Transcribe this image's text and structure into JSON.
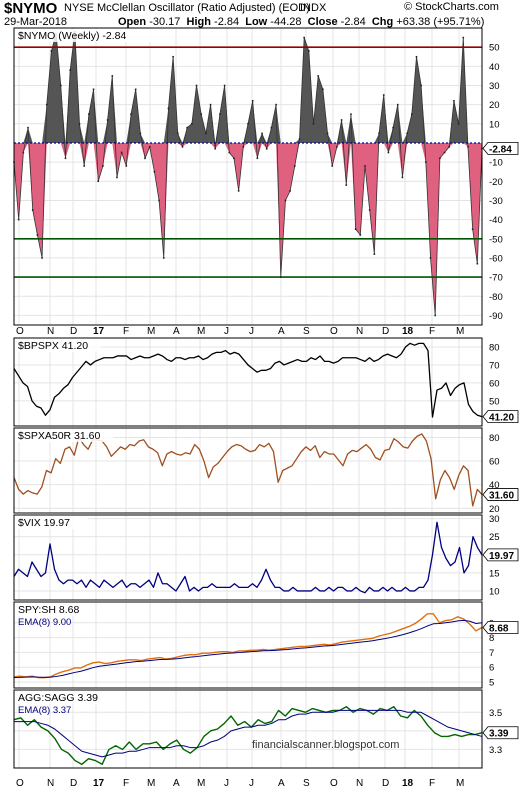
{
  "header": {
    "symbol": "$NYMO",
    "description": "NYSE McClellan Oscillator (Ratio Adjusted) (EOD)",
    "exchange": "INDX",
    "brand": "© StockCharts.com",
    "date": "29-Mar-2018",
    "open_label": "Open",
    "open": "-30.17",
    "high_label": "High",
    "high": "-2.84",
    "low_label": "Low",
    "low": "-44.28",
    "close_label": "Close",
    "close": "-2.84",
    "chg_label": "Chg",
    "chg": "+63.38 (+95.71%)"
  },
  "watermark": "financialscanner.blogspot.com",
  "x_labels": [
    "O",
    "N",
    "D",
    "17",
    "F",
    "M",
    "A",
    "M",
    "J",
    "J",
    "A",
    "S",
    "O",
    "N",
    "D",
    "18",
    "F",
    "M"
  ],
  "colors": {
    "red_line": "#990000",
    "green_line": "#005500",
    "zero_line": "#000099",
    "pos_fill": "#555555",
    "neg_fill": "#e06080",
    "bpspx": "#000000",
    "spxa50r": "#a05020",
    "vix": "#000080",
    "spysh": "#e07010",
    "ema": "#000080",
    "aggsagg": "#006600"
  },
  "chart_data": [
    {
      "type": "area",
      "name": "nymo",
      "label": "$NYMO (Weekly) -2.84",
      "last": "-2.84",
      "ylim": [
        -95,
        60
      ],
      "yticks": [
        50,
        40,
        30,
        20,
        10,
        -10,
        -20,
        -30,
        -40,
        -50,
        -60,
        -70,
        -80,
        -90
      ],
      "hlines": [
        50,
        -50,
        -70
      ],
      "values": [
        -10,
        -40,
        -5,
        8,
        -35,
        -48,
        -60,
        20,
        48,
        57,
        30,
        -8,
        38,
        58,
        10,
        -12,
        15,
        28,
        -20,
        -12,
        12,
        35,
        -18,
        -5,
        -12,
        15,
        28,
        5,
        -8,
        -2,
        -15,
        -30,
        -60,
        18,
        45,
        5,
        -2,
        8,
        10,
        30,
        15,
        5,
        20,
        -3,
        15,
        30,
        -5,
        -8,
        -25,
        -2,
        10,
        22,
        -8,
        5,
        -3,
        8,
        20,
        -70,
        -30,
        -25,
        -12,
        2,
        55,
        48,
        10,
        35,
        28,
        5,
        -12,
        -2,
        12,
        -22,
        15,
        -45,
        -48,
        -12,
        -35,
        -58,
        5,
        25,
        -5,
        8,
        20,
        -18,
        5,
        15,
        45,
        30,
        -10,
        -60,
        -90,
        -8,
        -5,
        -2,
        22,
        10,
        55,
        -2,
        -45,
        -63,
        -2.84
      ]
    },
    {
      "type": "line",
      "name": "bpspx",
      "label": "$BPSPX 41.20",
      "last": "41.20",
      "ylim": [
        36,
        85
      ],
      "yticks": [
        80,
        70,
        60,
        50
      ],
      "values": [
        68,
        64,
        60,
        58,
        50,
        47,
        46,
        42,
        45,
        52,
        54,
        57,
        59,
        63,
        66,
        69,
        72,
        70,
        72,
        73,
        74,
        74,
        74,
        75,
        75,
        75,
        73,
        74,
        75,
        74,
        74,
        75,
        76,
        75,
        73,
        72,
        74,
        74,
        73,
        74,
        74,
        75,
        73,
        74,
        76,
        77,
        77,
        78,
        76,
        77,
        76,
        73,
        70,
        68,
        66,
        67,
        67,
        68,
        71,
        72,
        70,
        71,
        72,
        73,
        72,
        72,
        74,
        73,
        75,
        72,
        72,
        71,
        72,
        74,
        74,
        74,
        74,
        73,
        72,
        74,
        72,
        73,
        75,
        76,
        75,
        74,
        76,
        80,
        82,
        81,
        82,
        82,
        78,
        41,
        56,
        57,
        60,
        53,
        57,
        59,
        60,
        48,
        44,
        42,
        41.2
      ]
    },
    {
      "type": "line",
      "name": "spxa50r",
      "label": "$SPXA50R 31.60",
      "last": "31.60",
      "ylim": [
        16,
        88
      ],
      "yticks": [
        80,
        60,
        40,
        20
      ],
      "values": [
        46,
        36,
        32,
        35,
        33,
        32,
        38,
        52,
        50,
        62,
        58,
        70,
        72,
        65,
        80,
        74,
        70,
        78,
        78,
        77,
        72,
        64,
        68,
        72,
        70,
        74,
        73,
        77,
        78,
        72,
        70,
        67,
        56,
        66,
        68,
        66,
        65,
        67,
        66,
        74,
        70,
        60,
        46,
        55,
        58,
        63,
        68,
        72,
        74,
        73,
        70,
        68,
        69,
        74,
        72,
        75,
        68,
        42,
        52,
        54,
        56,
        62,
        68,
        72,
        69,
        73,
        63,
        68,
        66,
        66,
        61,
        56,
        66,
        69,
        68,
        71,
        74,
        70,
        63,
        61,
        69,
        70,
        79,
        76,
        72,
        71,
        77,
        81,
        83,
        77,
        62,
        28,
        44,
        52,
        46,
        36,
        48,
        56,
        52,
        22,
        36,
        31.6
      ]
    },
    {
      "type": "line",
      "name": "vix",
      "label": "$VIX 19.97",
      "last": "19.97",
      "ylim": [
        7.5,
        31
      ],
      "yticks": [
        30,
        25,
        20,
        15,
        10
      ],
      "values": [
        14,
        16,
        15,
        14,
        18,
        16,
        14,
        15,
        23,
        16,
        13,
        12,
        13,
        13,
        12,
        13,
        11,
        13,
        12,
        11,
        13,
        12,
        11,
        12,
        13,
        11,
        12,
        12,
        11,
        12,
        13,
        11,
        15,
        12,
        12,
        11,
        10,
        12,
        14,
        10,
        11,
        10,
        11,
        11,
        12,
        11,
        11,
        11,
        11,
        12,
        11,
        11,
        11,
        12,
        11,
        13,
        16,
        13,
        11,
        11,
        10,
        10,
        11,
        10,
        10,
        10,
        10,
        11,
        10,
        10,
        11,
        10,
        11,
        11,
        10,
        10,
        11,
        10,
        9.5,
        11,
        10,
        10,
        11,
        10,
        11,
        10,
        10,
        11,
        10,
        10,
        11,
        11,
        13,
        20,
        29,
        22,
        19,
        17,
        18,
        22,
        15,
        17,
        25,
        22,
        19.97
      ]
    },
    {
      "type": "line",
      "name": "spysh",
      "label": "SPY:SH 8.68",
      "ema_label": "EMA(8) 9.00",
      "last": "8.68",
      "ylim": [
        4.6,
        10.4
      ],
      "yticks": [
        9,
        8,
        7,
        6,
        5
      ],
      "series": [
        {
          "name": "SPY:SH",
          "values": [
            5.35,
            5.4,
            5.35,
            5.4,
            5.3,
            5.3,
            5.35,
            5.55,
            5.7,
            5.8,
            5.95,
            5.95,
            6.15,
            6.3,
            6.35,
            6.25,
            6.3,
            6.4,
            6.45,
            6.5,
            6.5,
            6.45,
            6.55,
            6.6,
            6.65,
            6.55,
            6.6,
            6.7,
            6.8,
            6.85,
            6.85,
            6.95,
            6.95,
            7.0,
            7.05,
            7.05,
            7.0,
            7.1,
            7.1,
            7.15,
            7.15,
            7.2,
            7.15,
            7.2,
            7.25,
            7.3,
            7.35,
            7.4,
            7.4,
            7.45,
            7.5,
            7.55,
            7.5,
            7.6,
            7.7,
            7.75,
            7.8,
            7.85,
            7.9,
            7.95,
            8.1,
            8.2,
            8.3,
            8.45,
            8.6,
            8.75,
            8.95,
            9.25,
            9.6,
            9.6,
            9.0,
            9.15,
            9.2,
            9.4,
            9.25,
            8.9,
            8.45,
            8.68
          ]
        },
        {
          "name": "EMA(8)",
          "values": [
            5.3,
            5.32,
            5.33,
            5.35,
            5.33,
            5.32,
            5.33,
            5.38,
            5.45,
            5.55,
            5.65,
            5.73,
            5.85,
            5.97,
            6.07,
            6.12,
            6.17,
            6.22,
            6.28,
            6.33,
            6.38,
            6.4,
            6.44,
            6.48,
            6.52,
            6.53,
            6.55,
            6.58,
            6.63,
            6.68,
            6.72,
            6.77,
            6.82,
            6.86,
            6.9,
            6.94,
            6.96,
            6.99,
            7.02,
            7.05,
            7.08,
            7.11,
            7.12,
            7.14,
            7.17,
            7.2,
            7.24,
            7.28,
            7.31,
            7.35,
            7.39,
            7.43,
            7.45,
            7.49,
            7.54,
            7.59,
            7.64,
            7.69,
            7.74,
            7.79,
            7.86,
            7.93,
            8.01,
            8.1,
            8.2,
            8.32,
            8.45,
            8.6,
            8.78,
            8.93,
            8.95,
            9.0,
            9.05,
            9.13,
            9.16,
            9.1,
            8.95,
            9.0
          ]
        }
      ]
    },
    {
      "type": "line",
      "name": "aggsagg",
      "label": "AGG:SAGG 3.39",
      "ema_label": "EMA(8) 3.37",
      "last": "3.39",
      "ylim": [
        3.2,
        3.62
      ],
      "yticks": [
        3.5,
        3.4,
        3.3
      ],
      "series": [
        {
          "name": "AGG:SAGG",
          "values": [
            3.46,
            3.47,
            3.43,
            3.46,
            3.42,
            3.4,
            3.36,
            3.3,
            3.28,
            3.24,
            3.22,
            3.25,
            3.24,
            3.22,
            3.3,
            3.32,
            3.3,
            3.34,
            3.3,
            3.33,
            3.33,
            3.34,
            3.3,
            3.33,
            3.35,
            3.3,
            3.28,
            3.31,
            3.37,
            3.4,
            3.41,
            3.44,
            3.48,
            3.43,
            3.45,
            3.42,
            3.46,
            3.44,
            3.45,
            3.51,
            3.48,
            3.52,
            3.51,
            3.5,
            3.52,
            3.51,
            3.5,
            3.51,
            3.51,
            3.53,
            3.5,
            3.52,
            3.51,
            3.49,
            3.52,
            3.51,
            3.53,
            3.48,
            3.47,
            3.51,
            3.48,
            3.43,
            3.39,
            3.37,
            3.37,
            3.38,
            3.37,
            3.38,
            3.38,
            3.39
          ]
        },
        {
          "name": "EMA(8)",
          "values": [
            3.45,
            3.45,
            3.45,
            3.45,
            3.44,
            3.43,
            3.41,
            3.38,
            3.35,
            3.32,
            3.29,
            3.28,
            3.27,
            3.26,
            3.27,
            3.28,
            3.28,
            3.29,
            3.29,
            3.3,
            3.31,
            3.31,
            3.31,
            3.31,
            3.32,
            3.32,
            3.31,
            3.31,
            3.32,
            3.34,
            3.35,
            3.37,
            3.4,
            3.41,
            3.42,
            3.42,
            3.43,
            3.43,
            3.44,
            3.46,
            3.46,
            3.48,
            3.49,
            3.49,
            3.5,
            3.5,
            3.5,
            3.5,
            3.51,
            3.51,
            3.51,
            3.51,
            3.51,
            3.51,
            3.51,
            3.51,
            3.51,
            3.51,
            3.5,
            3.5,
            3.5,
            3.48,
            3.46,
            3.44,
            3.42,
            3.41,
            3.4,
            3.39,
            3.38,
            3.37
          ]
        }
      ]
    }
  ]
}
